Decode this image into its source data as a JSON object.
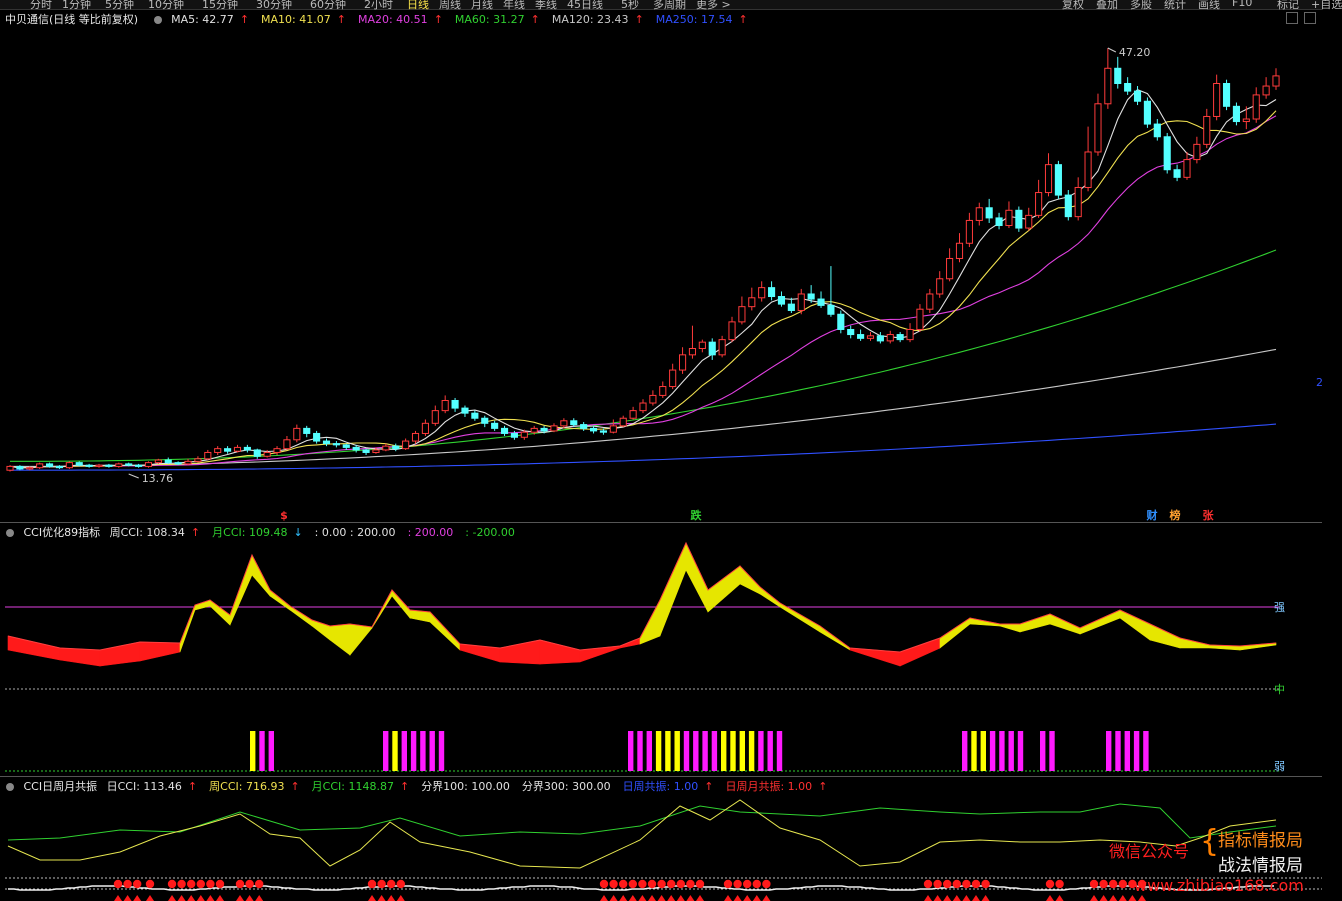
{
  "toolbar": {
    "periods": [
      "分时",
      "1分钟",
      "5分钟",
      "10分钟",
      "15分钟",
      "30分钟",
      "60分钟",
      "2小时",
      "日线",
      "周线",
      "月线",
      "年线",
      "季线",
      "45日线",
      "5秒",
      "多周期",
      "更多 >"
    ],
    "active_period": "日线",
    "right_buttons": [
      "复权",
      "叠加",
      "多股",
      "统计",
      "画线",
      "F10",
      "标记",
      "+自选"
    ]
  },
  "main_chart": {
    "title": "中贝通信(日线 等比前复权)",
    "ma": [
      {
        "label": "MA5: 42.77",
        "arrow": "↑",
        "color": "#e0e0e0"
      },
      {
        "label": "MA10: 41.07",
        "arrow": "↑",
        "color": "#f0e050"
      },
      {
        "label": "MA20: 40.51",
        "arrow": "↑",
        "color": "#e040e0"
      },
      {
        "label": "MA60: 31.27",
        "arrow": "↑",
        "color": "#30d030"
      },
      {
        "label": "MA120: 23.43",
        "arrow": "↑",
        "color": "#c8c8c8"
      },
      {
        "label": "MA250: 17.54",
        "arrow": "↑",
        "color": "#3050ff"
      }
    ],
    "high_label": "47.20",
    "low_label": "13.76",
    "markers": [
      {
        "text": "$",
        "color": "#ff3030"
      },
      {
        "text": "跌",
        "color": "#30d030"
      },
      {
        "text": "财",
        "color": "#3090ff"
      },
      {
        "text": "榜",
        "color": "#ffa030"
      },
      {
        "text": "张",
        "color": "#ff3030"
      }
    ],
    "right_axis_label": "2"
  },
  "panel2": {
    "title": "CCI优化89指标",
    "items": [
      {
        "label": "周CCI: 108.34",
        "arrow": "↑",
        "color": "#e0e0e0",
        "arrow_color": "#ff3030"
      },
      {
        "label": "月CCI: 109.48",
        "arrow": "↓",
        "color": "#30d030",
        "arrow_color": "#30c0ff"
      },
      {
        "label": ": 0.00 : 200.00",
        "arrow": "",
        "color": "#e0e0e0",
        "arrow_color": ""
      },
      {
        "label": ": 200.00",
        "arrow": "",
        "color": "#e040e0",
        "arrow_color": ""
      },
      {
        "label": ": -200.00",
        "arrow": "",
        "color": "#30d030",
        "arrow_color": ""
      }
    ],
    "level_labels": {
      "strong": "强",
      "mid": "中",
      "weak": "弱"
    }
  },
  "panel3": {
    "title": "CCI日周月共振",
    "items": [
      {
        "label": "日CCI: 113.46",
        "arrow": "↑",
        "color": "#e0e0e0"
      },
      {
        "label": "周CCI: 716.93",
        "arrow": "↑",
        "color": "#f0e050"
      },
      {
        "label": "月CCI: 1148.87",
        "arrow": "↑",
        "color": "#30d030"
      },
      {
        "label": "分界100: 100.00",
        "arrow": "",
        "color": "#e0e0e0"
      },
      {
        "label": "分界300: 300.00",
        "arrow": "",
        "color": "#e0e0e0"
      },
      {
        "label": "日周共振: 1.00",
        "arrow": "↑",
        "color": "#3050ff"
      },
      {
        "label": "日周月共振: 1.00",
        "arrow": "↑",
        "color": "#ff3030"
      }
    ]
  },
  "watermark": {
    "line1": "指标情报局",
    "line2": "战法情报局",
    "wechat": "微信公众号",
    "url": "www.zhibiao168.com"
  },
  "colors": {
    "up": "#ff3b3b",
    "down": "#54ffff",
    "bg": "#000000"
  },
  "chart_data": {
    "type": "candlestick",
    "y_range_main": [
      13.76,
      47.2
    ],
    "candles": [
      [
        13.9,
        14.2,
        13.8,
        14.3
      ],
      [
        14.2,
        14.0,
        13.9,
        14.3
      ],
      [
        14.0,
        14.1,
        13.9,
        14.2
      ],
      [
        14.1,
        14.4,
        14.0,
        14.5
      ],
      [
        14.4,
        14.2,
        14.1,
        14.5
      ],
      [
        14.2,
        14.1,
        14.0,
        14.3
      ],
      [
        14.1,
        14.5,
        14.0,
        14.6
      ],
      [
        14.5,
        14.3,
        14.2,
        14.6
      ],
      [
        14.3,
        14.2,
        14.1,
        14.4
      ],
      [
        14.2,
        14.3,
        14.1,
        14.4
      ],
      [
        14.3,
        14.2,
        14.1,
        14.4
      ],
      [
        14.2,
        14.4,
        14.1,
        14.5
      ],
      [
        14.4,
        14.3,
        14.2,
        14.5
      ],
      [
        14.3,
        14.2,
        14.1,
        14.4
      ],
      [
        14.2,
        14.5,
        14.1,
        14.6
      ],
      [
        14.5,
        14.7,
        14.4,
        14.8
      ],
      [
        14.7,
        14.5,
        14.4,
        14.9
      ],
      [
        14.5,
        14.4,
        14.3,
        14.6
      ],
      [
        14.4,
        14.6,
        14.3,
        14.8
      ],
      [
        14.6,
        14.8,
        14.5,
        15.0
      ],
      [
        14.8,
        15.3,
        14.7,
        15.5
      ],
      [
        15.3,
        15.6,
        15.1,
        15.8
      ],
      [
        15.6,
        15.4,
        15.2,
        15.8
      ],
      [
        15.4,
        15.7,
        15.3,
        15.9
      ],
      [
        15.7,
        15.5,
        15.3,
        15.9
      ],
      [
        15.5,
        15.0,
        14.8,
        15.6
      ],
      [
        15.0,
        15.3,
        14.9,
        15.5
      ],
      [
        15.3,
        15.6,
        15.1,
        15.8
      ],
      [
        15.6,
        16.3,
        15.5,
        16.6
      ],
      [
        16.3,
        17.2,
        16.1,
        17.5
      ],
      [
        17.2,
        16.8,
        16.5,
        17.4
      ],
      [
        16.8,
        16.2,
        16.0,
        17.0
      ],
      [
        16.2,
        16.0,
        15.8,
        16.4
      ],
      [
        16.0,
        15.9,
        15.7,
        16.2
      ],
      [
        15.9,
        15.7,
        15.5,
        16.0
      ],
      [
        15.7,
        15.5,
        15.3,
        15.9
      ],
      [
        15.5,
        15.3,
        15.1,
        15.6
      ],
      [
        15.3,
        15.5,
        15.2,
        15.7
      ],
      [
        15.5,
        15.8,
        15.4,
        16.0
      ],
      [
        15.8,
        15.6,
        15.4,
        16.0
      ],
      [
        15.6,
        16.2,
        15.5,
        16.4
      ],
      [
        16.2,
        16.8,
        16.0,
        17.0
      ],
      [
        16.8,
        17.6,
        16.6,
        17.9
      ],
      [
        17.6,
        18.6,
        17.4,
        19.0
      ],
      [
        18.6,
        19.4,
        18.4,
        19.8
      ],
      [
        19.4,
        18.8,
        18.5,
        19.6
      ],
      [
        18.8,
        18.4,
        18.1,
        19.0
      ],
      [
        18.4,
        18.0,
        17.8,
        18.6
      ],
      [
        18.0,
        17.6,
        17.3,
        18.2
      ],
      [
        17.6,
        17.2,
        17.0,
        17.8
      ],
      [
        17.2,
        16.8,
        16.6,
        17.4
      ],
      [
        16.8,
        16.5,
        16.3,
        17.0
      ],
      [
        16.5,
        16.9,
        16.3,
        17.1
      ],
      [
        16.9,
        17.2,
        16.7,
        17.4
      ],
      [
        17.2,
        17.0,
        16.8,
        17.4
      ],
      [
        17.0,
        17.4,
        16.9,
        17.6
      ],
      [
        17.4,
        17.8,
        17.2,
        18.0
      ],
      [
        17.8,
        17.5,
        17.3,
        18.0
      ],
      [
        17.5,
        17.2,
        17.0,
        17.7
      ],
      [
        17.2,
        17.0,
        16.8,
        17.4
      ],
      [
        17.0,
        16.9,
        16.7,
        17.2
      ],
      [
        16.9,
        17.4,
        16.8,
        17.9
      ],
      [
        17.4,
        18.0,
        17.3,
        18.2
      ],
      [
        18.0,
        18.6,
        17.9,
        18.9
      ],
      [
        18.6,
        19.2,
        18.4,
        19.5
      ],
      [
        19.2,
        19.8,
        19.0,
        20.2
      ],
      [
        19.8,
        20.5,
        19.6,
        20.9
      ],
      [
        20.5,
        21.8,
        20.3,
        22.3
      ],
      [
        21.8,
        23.0,
        21.5,
        23.6
      ],
      [
        23.0,
        23.5,
        22.7,
        25.3
      ],
      [
        23.5,
        24.0,
        23.2,
        24.2
      ],
      [
        24.0,
        23.0,
        22.6,
        24.3
      ],
      [
        23.0,
        24.2,
        22.8,
        24.5
      ],
      [
        24.2,
        25.6,
        24.0,
        26.0
      ],
      [
        25.6,
        26.8,
        25.4,
        27.6
      ],
      [
        26.8,
        27.5,
        26.5,
        28.3
      ],
      [
        27.5,
        28.3,
        27.2,
        28.8
      ],
      [
        28.3,
        27.6,
        27.3,
        28.8
      ],
      [
        27.6,
        27.0,
        26.8,
        28.0
      ],
      [
        27.0,
        26.5,
        26.3,
        27.5
      ],
      [
        26.5,
        27.8,
        26.2,
        28.2
      ],
      [
        27.8,
        27.4,
        27.1,
        28.5
      ],
      [
        27.4,
        26.9,
        26.7,
        28.0
      ],
      [
        26.9,
        26.2,
        26.0,
        30.0
      ],
      [
        26.2,
        25.0,
        24.7,
        26.5
      ],
      [
        25.0,
        24.6,
        24.3,
        25.3
      ],
      [
        24.6,
        24.3,
        24.1,
        25.0
      ],
      [
        24.3,
        24.5,
        24.1,
        24.8
      ],
      [
        24.5,
        24.1,
        23.9,
        24.8
      ],
      [
        24.1,
        24.6,
        23.9,
        24.9
      ],
      [
        24.6,
        24.2,
        24.0,
        24.8
      ],
      [
        24.2,
        25.0,
        24.0,
        25.5
      ],
      [
        25.0,
        26.6,
        24.8,
        27.0
      ],
      [
        26.6,
        27.8,
        26.3,
        28.2
      ],
      [
        27.8,
        29.0,
        27.5,
        29.6
      ],
      [
        29.0,
        30.6,
        28.8,
        31.4
      ],
      [
        30.6,
        31.8,
        30.3,
        32.6
      ],
      [
        31.8,
        33.6,
        31.5,
        34.2
      ],
      [
        33.6,
        34.6,
        33.2,
        35.0
      ],
      [
        34.6,
        33.8,
        33.4,
        35.3
      ],
      [
        33.8,
        33.2,
        32.9,
        34.2
      ],
      [
        33.2,
        34.4,
        33.0,
        35.1
      ],
      [
        34.4,
        33.0,
        32.7,
        34.7
      ],
      [
        33.0,
        34.0,
        32.8,
        34.6
      ],
      [
        34.0,
        35.8,
        33.8,
        36.8
      ],
      [
        35.8,
        38.0,
        35.5,
        38.9
      ],
      [
        38.0,
        35.6,
        35.3,
        38.3
      ],
      [
        35.6,
        33.9,
        33.6,
        36.0
      ],
      [
        33.9,
        36.2,
        33.6,
        37.0
      ],
      [
        36.2,
        39.0,
        35.9,
        41.0
      ],
      [
        39.0,
        42.8,
        38.7,
        43.6
      ],
      [
        42.8,
        45.6,
        42.4,
        47.2
      ],
      [
        45.6,
        44.4,
        44.0,
        46.5
      ],
      [
        44.4,
        43.8,
        43.5,
        44.9
      ],
      [
        43.8,
        43.0,
        42.7,
        44.2
      ],
      [
        43.0,
        41.2,
        40.9,
        43.3
      ],
      [
        41.2,
        40.2,
        39.9,
        41.6
      ],
      [
        40.2,
        37.6,
        37.3,
        40.5
      ],
      [
        37.6,
        37.0,
        36.7,
        38.0
      ],
      [
        37.0,
        38.4,
        36.8,
        39.0
      ],
      [
        38.4,
        39.6,
        38.1,
        40.2
      ],
      [
        39.6,
        41.8,
        39.3,
        42.4
      ],
      [
        41.8,
        44.4,
        41.5,
        45.1
      ],
      [
        44.4,
        42.6,
        42.3,
        44.7
      ],
      [
        42.6,
        41.4,
        41.1,
        42.9
      ],
      [
        41.4,
        41.6,
        40.8,
        42.6
      ],
      [
        41.6,
        43.5,
        41.3,
        44.1
      ],
      [
        43.5,
        44.2,
        43.2,
        44.9
      ],
      [
        44.2,
        45.0,
        43.9,
        45.6
      ]
    ],
    "ma_sample_points": {
      "MA60_start": 14.6,
      "MA60_end": 31.27,
      "MA120_start": 14.2,
      "MA120_end": 23.43,
      "MA250_start": 13.9,
      "MA250_end": 17.54
    }
  }
}
